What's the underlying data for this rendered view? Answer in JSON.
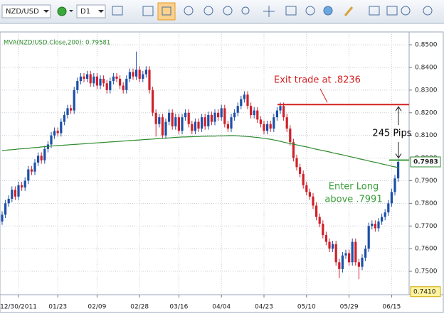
{
  "toolbar": {
    "symbol": "NZD/USD",
    "timeframe": "D1"
  },
  "chart_data": {
    "type": "candlestick",
    "categories": [
      null,
      null,
      null,
      null,
      null,
      "12/30/2011",
      null,
      null,
      null,
      null,
      null,
      null,
      null,
      null,
      null,
      null,
      null,
      "01/23",
      null,
      null,
      null,
      null,
      null,
      null,
      null,
      null,
      null,
      null,
      null,
      "02/09",
      null,
      null,
      null,
      null,
      null,
      null,
      null,
      null,
      null,
      null,
      null,
      null,
      "02/28",
      null,
      null,
      null,
      null,
      null,
      null,
      null,
      null,
      null,
      null,
      null,
      "03/16",
      null,
      null,
      null,
      null,
      null,
      null,
      null,
      null,
      null,
      null,
      null,
      null,
      "04/04",
      null,
      null,
      null,
      null,
      null,
      null,
      null,
      null,
      null,
      null,
      null,
      null,
      "04/23",
      null,
      null,
      null,
      null,
      null,
      null,
      null,
      null,
      null,
      null,
      null,
      null,
      "05/10",
      null,
      null,
      null,
      null,
      null,
      null,
      null,
      null,
      null,
      null,
      null,
      null,
      "05/29",
      null,
      null,
      null,
      null,
      null,
      null,
      null,
      null,
      null,
      null,
      null,
      null,
      "06/15",
      null,
      null
    ],
    "open": [
      0.772,
      0.775,
      0.78,
      0.782,
      0.786,
      0.783,
      0.788,
      0.787,
      0.79,
      0.795,
      0.794,
      0.798,
      0.801,
      0.799,
      0.804,
      0.806,
      0.81,
      0.812,
      0.811,
      0.816,
      0.819,
      0.822,
      0.821,
      0.83,
      0.834,
      0.836,
      0.835,
      0.837,
      0.833,
      0.836,
      0.832,
      0.835,
      0.833,
      0.83,
      0.834,
      0.836,
      0.835,
      0.832,
      0.83,
      0.835,
      0.838,
      0.836,
      0.839,
      0.835,
      0.837,
      0.839,
      0.83,
      0.82,
      0.815,
      0.818,
      0.81,
      0.816,
      0.82,
      0.814,
      0.818,
      0.812,
      0.818,
      0.82,
      0.815,
      0.812,
      0.816,
      0.813,
      0.818,
      0.814,
      0.819,
      0.816,
      0.82,
      0.818,
      0.822,
      0.815,
      0.813,
      0.818,
      0.82,
      0.823,
      0.826,
      0.828,
      0.823,
      0.819,
      0.821,
      0.817,
      0.815,
      0.812,
      0.815,
      0.813,
      0.818,
      0.821,
      0.823,
      0.818,
      0.813,
      0.807,
      0.8,
      0.796,
      0.793,
      0.788,
      0.785,
      0.783,
      0.779,
      0.774,
      0.771,
      0.766,
      0.763,
      0.76,
      0.762,
      0.754,
      0.751,
      0.757,
      0.758,
      0.754,
      0.763,
      0.754,
      0.752,
      0.756,
      0.76,
      0.77,
      0.771,
      0.769,
      0.772,
      0.774,
      0.776,
      0.78,
      0.785,
      0.791
    ],
    "high": [
      0.7765,
      0.7815,
      0.7835,
      0.7875,
      0.7875,
      0.7895,
      0.7895,
      0.7915,
      0.7965,
      0.7965,
      0.7995,
      0.8025,
      0.8025,
      0.8055,
      0.8075,
      0.8115,
      0.8135,
      0.8135,
      0.8175,
      0.8205,
      0.8235,
      0.8235,
      0.8315,
      0.8355,
      0.8375,
      0.8375,
      0.8385,
      0.8385,
      0.8375,
      0.8375,
      0.8365,
      0.8365,
      0.8345,
      0.8355,
      0.8375,
      0.8375,
      0.8365,
      0.8335,
      0.8365,
      0.8395,
      0.8395,
      0.847,
      0.8405,
      0.8385,
      0.8405,
      0.8405,
      0.8315,
      0.8215,
      0.8195,
      0.8195,
      0.8175,
      0.8215,
      0.8215,
      0.8195,
      0.8195,
      0.8195,
      0.8215,
      0.8215,
      0.8165,
      0.8175,
      0.8175,
      0.8195,
      0.8195,
      0.8205,
      0.8205,
      0.8215,
      0.8215,
      0.8235,
      0.8235,
      0.8165,
      0.8195,
      0.8215,
      0.8245,
      0.8275,
      0.8295,
      0.8295,
      0.8245,
      0.8225,
      0.8225,
      0.8185,
      0.8165,
      0.8165,
      0.8165,
      0.8195,
      0.8225,
      0.8245,
      0.8245,
      0.8195,
      0.8145,
      0.8085,
      0.8015,
      0.7975,
      0.7945,
      0.7895,
      0.7865,
      0.7845,
      0.7805,
      0.7755,
      0.7725,
      0.7675,
      0.7645,
      0.7635,
      0.7635,
      0.7555,
      0.7585,
      0.7595,
      0.7595,
      0.7645,
      0.7645,
      0.7555,
      0.7575,
      0.7615,
      0.7715,
      0.7725,
      0.7725,
      0.7735,
      0.7755,
      0.7775,
      0.7815,
      0.7865,
      0.7925,
      0.7995
    ],
    "low": [
      0.7705,
      0.7735,
      0.7785,
      0.7805,
      0.7815,
      0.7815,
      0.7855,
      0.7855,
      0.7885,
      0.7925,
      0.7925,
      0.7965,
      0.7975,
      0.7975,
      0.8025,
      0.8045,
      0.8085,
      0.8095,
      0.8095,
      0.8145,
      0.8175,
      0.8195,
      0.8195,
      0.8285,
      0.8325,
      0.8335,
      0.8335,
      0.8315,
      0.8315,
      0.8305,
      0.8305,
      0.8315,
      0.8285,
      0.8285,
      0.8325,
      0.8335,
      0.8305,
      0.8285,
      0.8285,
      0.8335,
      0.8345,
      0.8345,
      0.8335,
      0.8335,
      0.8355,
      0.8285,
      0.8185,
      0.8095,
      0.8135,
      0.8085,
      0.8085,
      0.8145,
      0.8125,
      0.8125,
      0.8105,
      0.8105,
      0.8165,
      0.8135,
      0.8105,
      0.8105,
      0.8115,
      0.8115,
      0.8125,
      0.8125,
      0.8145,
      0.8145,
      0.8165,
      0.8165,
      0.8135,
      0.8115,
      0.8115,
      0.8165,
      0.8185,
      0.8215,
      0.8245,
      0.8215,
      0.8175,
      0.8175,
      0.8155,
      0.8135,
      0.8105,
      0.8105,
      0.8115,
      0.8115,
      0.8165,
      0.8195,
      0.8165,
      0.8115,
      0.8055,
      0.7985,
      0.7945,
      0.7915,
      0.7865,
      0.7835,
      0.7815,
      0.7775,
      0.7725,
      0.7695,
      0.7645,
      0.7615,
      0.7585,
      0.7585,
      0.7525,
      0.747,
      0.7495,
      0.7555,
      0.7525,
      0.7525,
      0.7525,
      0.7465,
      0.7505,
      0.7545,
      0.7585,
      0.7685,
      0.7675,
      0.7675,
      0.7705,
      0.7725,
      0.7745,
      0.7785,
      0.7835,
      0.7895
    ],
    "close": [
      0.775,
      0.78,
      0.782,
      0.786,
      0.783,
      0.788,
      0.787,
      0.79,
      0.795,
      0.794,
      0.798,
      0.801,
      0.799,
      0.804,
      0.806,
      0.81,
      0.812,
      0.811,
      0.816,
      0.819,
      0.822,
      0.821,
      0.83,
      0.834,
      0.836,
      0.835,
      0.837,
      0.833,
      0.836,
      0.832,
      0.835,
      0.833,
      0.83,
      0.834,
      0.836,
      0.835,
      0.832,
      0.83,
      0.835,
      0.838,
      0.836,
      0.839,
      0.835,
      0.837,
      0.839,
      0.83,
      0.82,
      0.815,
      0.818,
      0.81,
      0.816,
      0.82,
      0.814,
      0.818,
      0.812,
      0.818,
      0.82,
      0.815,
      0.812,
      0.816,
      0.813,
      0.818,
      0.814,
      0.819,
      0.816,
      0.82,
      0.818,
      0.822,
      0.815,
      0.813,
      0.818,
      0.82,
      0.823,
      0.826,
      0.828,
      0.823,
      0.819,
      0.821,
      0.817,
      0.815,
      0.812,
      0.815,
      0.813,
      0.818,
      0.821,
      0.823,
      0.818,
      0.813,
      0.807,
      0.8,
      0.796,
      0.793,
      0.788,
      0.785,
      0.783,
      0.779,
      0.774,
      0.771,
      0.766,
      0.763,
      0.76,
      0.762,
      0.754,
      0.751,
      0.757,
      0.758,
      0.754,
      0.763,
      0.754,
      0.752,
      0.756,
      0.76,
      0.77,
      0.771,
      0.769,
      0.772,
      0.774,
      0.776,
      0.78,
      0.785,
      0.791,
      0.7983
    ],
    "up_color": "#1c4fa8",
    "down_color": "#d0202a",
    "ma": {
      "label": "MVA(NZD/USD.Close,200): 0.79581",
      "color": "#2e8b2e",
      "values": [
        0.8033,
        0.8034,
        0.8036,
        0.8037,
        0.8038,
        0.804,
        0.8041,
        0.8042,
        0.8043,
        0.8045,
        0.8046,
        0.8047,
        0.8049,
        0.805,
        0.8051,
        0.8053,
        0.8054,
        0.8055,
        0.8056,
        0.8057,
        0.8058,
        0.8059,
        0.806,
        0.8061,
        0.8062,
        0.8063,
        0.8064,
        0.8065,
        0.8066,
        0.8067,
        0.8068,
        0.8069,
        0.807,
        0.8071,
        0.8072,
        0.8073,
        0.8074,
        0.8075,
        0.8076,
        0.8077,
        0.8078,
        0.8079,
        0.808,
        0.8081,
        0.8082,
        0.8083,
        0.8084,
        0.8085,
        0.8086,
        0.8087,
        0.8088,
        0.8089,
        0.809,
        0.8091,
        0.8092,
        0.8093,
        0.8093,
        0.8094,
        0.8094,
        0.8095,
        0.8095,
        0.8096,
        0.8096,
        0.8097,
        0.8097,
        0.8097,
        0.8098,
        0.8098,
        0.8098,
        0.8099,
        0.8099,
        0.8099,
        0.8098,
        0.8097,
        0.8096,
        0.8095,
        0.8094,
        0.8092,
        0.8091,
        0.8089,
        0.8087,
        0.8085,
        0.8083,
        0.808,
        0.8077,
        0.8074,
        0.807,
        0.8067,
        0.8064,
        0.8061,
        0.8058,
        0.8055,
        0.8052,
        0.8049,
        0.8046,
        0.8042,
        0.8039,
        0.8036,
        0.8033,
        0.803,
        0.8027,
        0.8023,
        0.802,
        0.8017,
        0.8014,
        0.8011,
        0.8007,
        0.8004,
        0.8001,
        0.7997,
        0.7994,
        0.7991,
        0.7987,
        0.7984,
        0.7981,
        0.7978,
        0.7974,
        0.7971,
        0.7968,
        0.7964,
        0.7961,
        0.7958
      ]
    },
    "ylim": [
      0.7403,
      0.8541
    ],
    "yticks": [
      {
        "value": 0.75,
        "label": "0.7500"
      },
      {
        "value": 0.76,
        "label": "0.7600"
      },
      {
        "value": 0.77,
        "label": "0.7700"
      },
      {
        "value": 0.78,
        "label": "0.7800"
      },
      {
        "value": 0.79,
        "label": "0.7900"
      },
      {
        "value": 0.8,
        "label": "0.8000"
      },
      {
        "value": 0.81,
        "label": "0.8100"
      },
      {
        "value": 0.82,
        "label": "0.8200"
      },
      {
        "value": 0.83,
        "label": "0.8300"
      },
      {
        "value": 0.84,
        "label": "0.8400"
      },
      {
        "value": 0.85,
        "label": "0.8500"
      }
    ],
    "min_price_label": {
      "value": 0.741,
      "label": "0.7410"
    },
    "grid": true,
    "exit": {
      "text": "Exit trade at .8236",
      "level": 0.8236,
      "color": "#d42020"
    },
    "entry": {
      "text": [
        "Enter Long",
        "above .7991"
      ],
      "level": 0.7991,
      "color": "#3a9e3a"
    },
    "pips_text": "245 Pips"
  }
}
